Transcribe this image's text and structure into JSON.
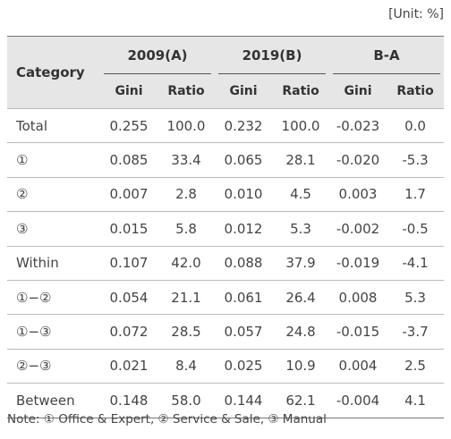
{
  "unit": "[Unit: %]",
  "table": {
    "category_header": "Category",
    "groups": [
      "2009(A)",
      "2019(B)",
      "B-A"
    ],
    "subheaders": [
      "Gini",
      "Ratio",
      "Gini",
      "Ratio",
      "Gini",
      "Ratio"
    ],
    "rows": [
      [
        "Total",
        "0.255",
        "100.0",
        "0.232",
        "100.0",
        "-0.023",
        "0.0"
      ],
      [
        "①",
        "0.085",
        "33.4",
        "0.065",
        "28.1",
        "-0.020",
        "-5.3"
      ],
      [
        "②",
        "0.007",
        "2.8",
        "0.010",
        "4.5",
        "0.003",
        "1.7"
      ],
      [
        "③",
        "0.015",
        "5.8",
        "0.012",
        "5.3",
        "-0.002",
        "-0.5"
      ],
      [
        "Within",
        "0.107",
        "42.0",
        "0.088",
        "37.9",
        "-0.019",
        "-4.1"
      ],
      [
        "①−②",
        "0.054",
        "21.1",
        "0.061",
        "26.4",
        "0.008",
        "5.3"
      ],
      [
        "①−③",
        "0.072",
        "28.5",
        "0.057",
        "24.8",
        "-0.015",
        "-3.7"
      ],
      [
        "②−③",
        "0.021",
        "8.4",
        "0.025",
        "10.9",
        "0.004",
        "2.5"
      ],
      [
        "Between",
        "0.148",
        "58.0",
        "0.144",
        "62.1",
        "-0.004",
        "4.1"
      ]
    ]
  },
  "note": "Note: ① Office & Expert, ② Service & Sale, ③ Manual"
}
